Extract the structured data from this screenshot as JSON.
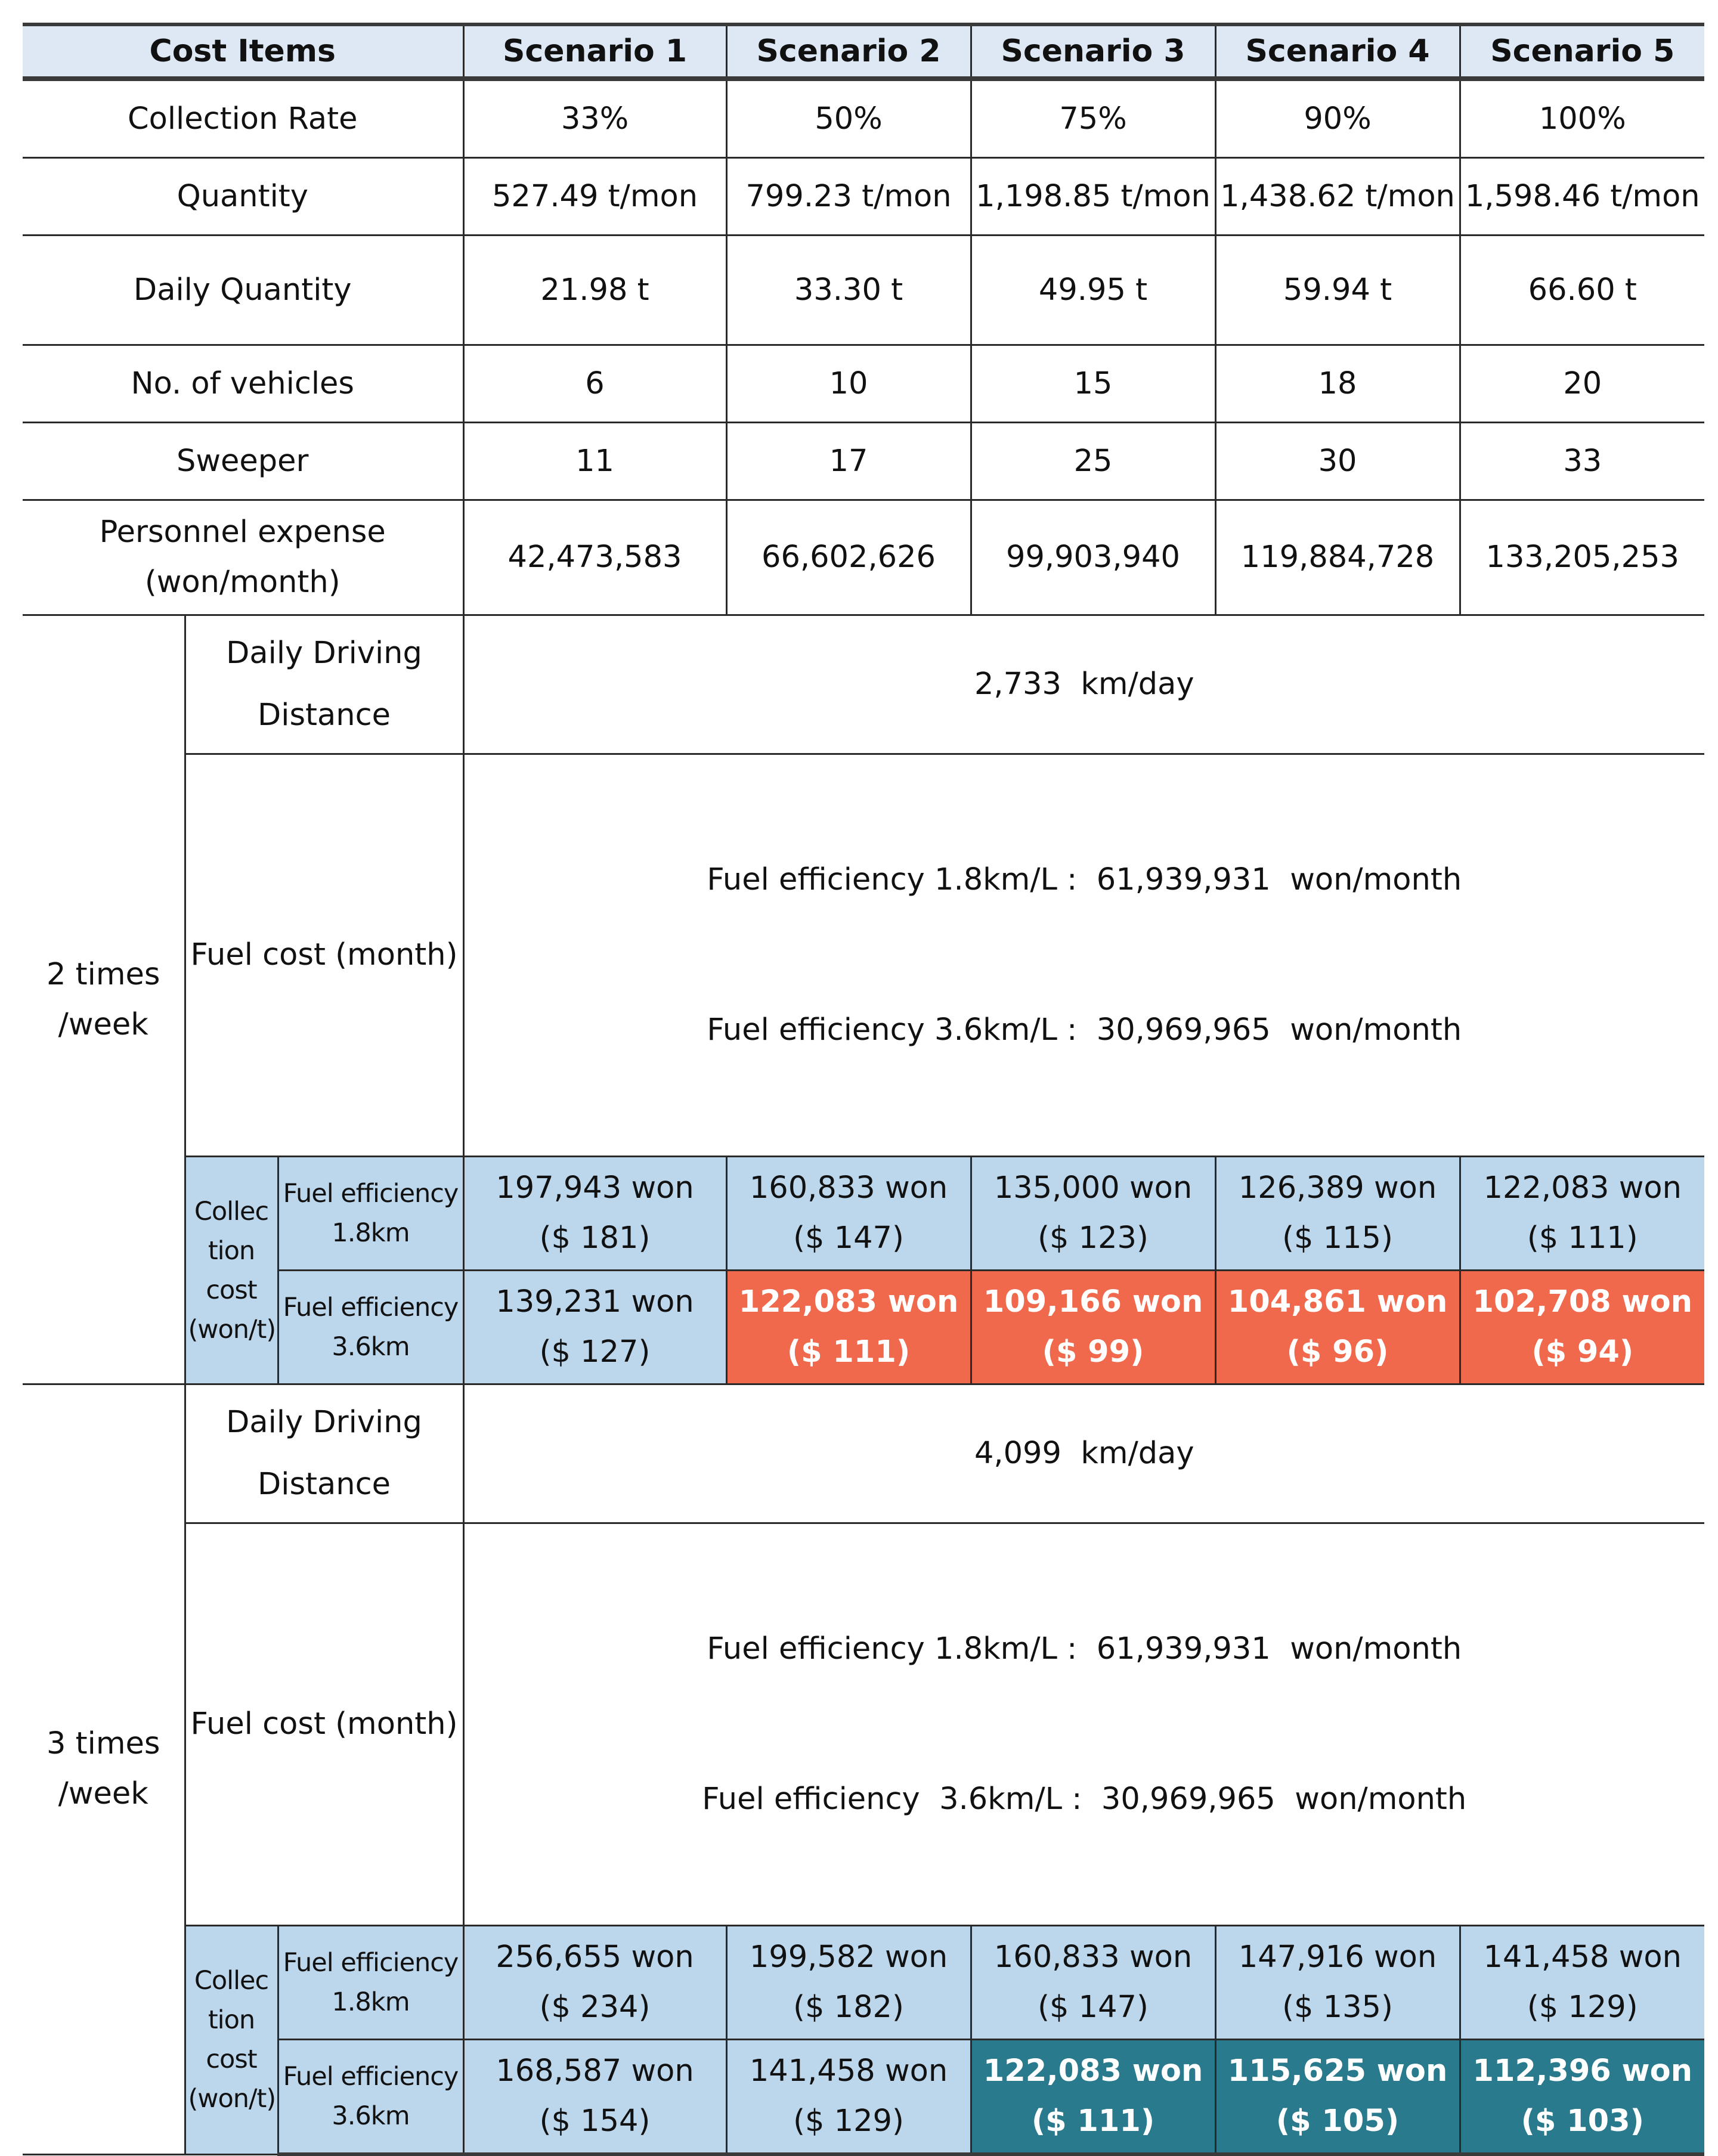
{
  "header": {
    "cost_items": "Cost Items",
    "scenarios": [
      "Scenario 1",
      "Scenario 2",
      "Scenario 3",
      "Scenario 4",
      "Scenario 5"
    ]
  },
  "rows": {
    "collection_rate": {
      "label": "Collection Rate",
      "values": [
        "33%",
        "50%",
        "75%",
        "90%",
        "100%"
      ]
    },
    "quantity": {
      "label": "Quantity",
      "values": [
        "527.49 t/mon",
        "799.23 t/mon",
        "1,198.85 t/mon",
        "1,438.62 t/mon",
        "1,598.46 t/mon"
      ]
    },
    "daily_quantity": {
      "label": "Daily Quantity",
      "values": [
        "21.98 t",
        "33.30 t",
        "49.95 t",
        "59.94 t",
        "66.60 t"
      ]
    },
    "vehicles": {
      "label": "No. of vehicles",
      "values": [
        "6",
        "10",
        "15",
        "18",
        "20"
      ]
    },
    "sweeper": {
      "label": "Sweeper",
      "values": [
        "11",
        "17",
        "25",
        "30",
        "33"
      ]
    },
    "personnel": {
      "label_line1": "Personnel expense",
      "label_line2": "(won/month)",
      "values": [
        "42,473,583",
        "66,602,626",
        "99,903,940",
        "119,884,728",
        "133,205,253"
      ]
    }
  },
  "two_times": {
    "group_line1": "2 times",
    "group_line2": "/week",
    "distance_label_line1": "Daily Driving",
    "distance_label_line2": "Distance",
    "distance_value": "2,733  km/day",
    "fuel_label": "Fuel cost (month)",
    "fuel_line1": "Fuel efficiency 1.8km/L :  61,939,931  won/month",
    "fuel_line2": "Fuel efficiency 3.6km/L :  30,969,965  won/month",
    "coll_label": [
      "Collec",
      "tion",
      "cost",
      "(won/t)"
    ],
    "eff18_line1": "Fuel efficiency",
    "eff18_line2": "1.8km",
    "eff36_line1": "Fuel efficiency",
    "eff36_line2": "3.6km",
    "eff18_values": [
      {
        "won": "197,943 won",
        "usd": "($ 181)"
      },
      {
        "won": "160,833 won",
        "usd": "($ 147)"
      },
      {
        "won": "135,000 won",
        "usd": "($ 123)"
      },
      {
        "won": "126,389 won",
        "usd": "($ 115)"
      },
      {
        "won": "122,083 won",
        "usd": "($ 111)"
      }
    ],
    "eff36_values": [
      {
        "won": "139,231 won",
        "usd": "($ 127)"
      },
      {
        "won": "122,083 won",
        "usd": "($ 111)"
      },
      {
        "won": "109,166 won",
        "usd": "($ 99)"
      },
      {
        "won": "104,861 won",
        "usd": "($ 96)"
      },
      {
        "won": "102,708 won",
        "usd": "($ 94)"
      }
    ]
  },
  "three_times": {
    "group_line1": "3 times",
    "group_line2": "/week",
    "distance_label_line1": "Daily Driving",
    "distance_label_line2": "Distance",
    "distance_value": "4,099  km/day",
    "fuel_label": "Fuel cost (month)",
    "fuel_line1": "Fuel efficiency 1.8km/L :  61,939,931  won/month",
    "fuel_line2": "Fuel efficiency  3.6km/L :  30,969,965  won/month",
    "coll_label": [
      "Collec",
      "tion",
      "cost",
      "(won/t)"
    ],
    "eff18_line1": "Fuel efficiency",
    "eff18_line2": "1.8km",
    "eff36_line1": "Fuel efficiency",
    "eff36_line2": "3.6km",
    "eff18_values": [
      {
        "won": "256,655 won",
        "usd": "($ 234)"
      },
      {
        "won": "199,582 won",
        "usd": "($ 182)"
      },
      {
        "won": "160,833 won",
        "usd": "($ 147)"
      },
      {
        "won": "147,916 won",
        "usd": "($ 135)"
      },
      {
        "won": "141,458 won",
        "usd": "($ 129)"
      }
    ],
    "eff36_values": [
      {
        "won": "168,587 won",
        "usd": "($ 154)"
      },
      {
        "won": "141,458 won",
        "usd": "($ 129)"
      },
      {
        "won": "122,083 won",
        "usd": "($ 111)"
      },
      {
        "won": "115,625 won",
        "usd": "($ 105)"
      },
      {
        "won": "112,396 won",
        "usd": "($ 103)"
      }
    ]
  },
  "colors": {
    "header_bg": "#dde8f4",
    "cost_bg": "#bcd6ec",
    "highlight_orange": "#f0694c",
    "highlight_teal": "#2a7a8d"
  }
}
